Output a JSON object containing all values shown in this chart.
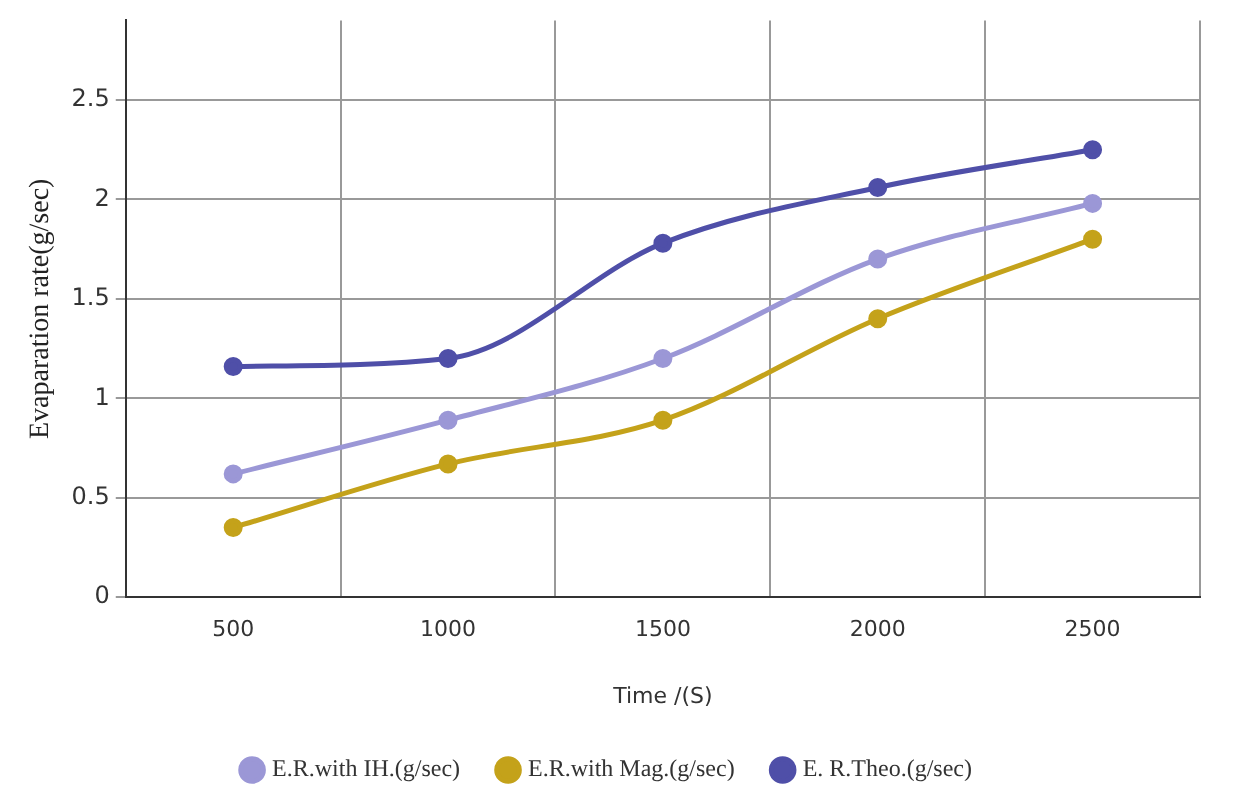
{
  "chart_data": {
    "type": "line",
    "xlabel": "Time /(S)",
    "ylabel": "Evaparation rate(g/sec)",
    "categories": [
      "500",
      "1000",
      "1500",
      "2000",
      "2500"
    ],
    "series": [
      {
        "name": "E.R.with IH.(g/sec)",
        "color": "#9b97d6",
        "values": [
          0.62,
          0.89,
          1.2,
          1.7,
          1.98
        ]
      },
      {
        "name": "E.R.with Mag.(g/sec)",
        "color": "#c4a21a",
        "values": [
          0.35,
          0.67,
          0.89,
          1.4,
          1.8
        ]
      },
      {
        "name": "E. R.Theo.(g/sec)",
        "color": "#4f4fa8",
        "values": [
          1.16,
          1.2,
          1.78,
          2.06,
          2.25
        ]
      }
    ],
    "ylim": [
      0,
      2.9
    ],
    "yticks": [
      0,
      0.5,
      1,
      1.5,
      2,
      2.5
    ],
    "grid": true,
    "legend": "bottom",
    "marker": "circle",
    "line_style": "solid"
  }
}
